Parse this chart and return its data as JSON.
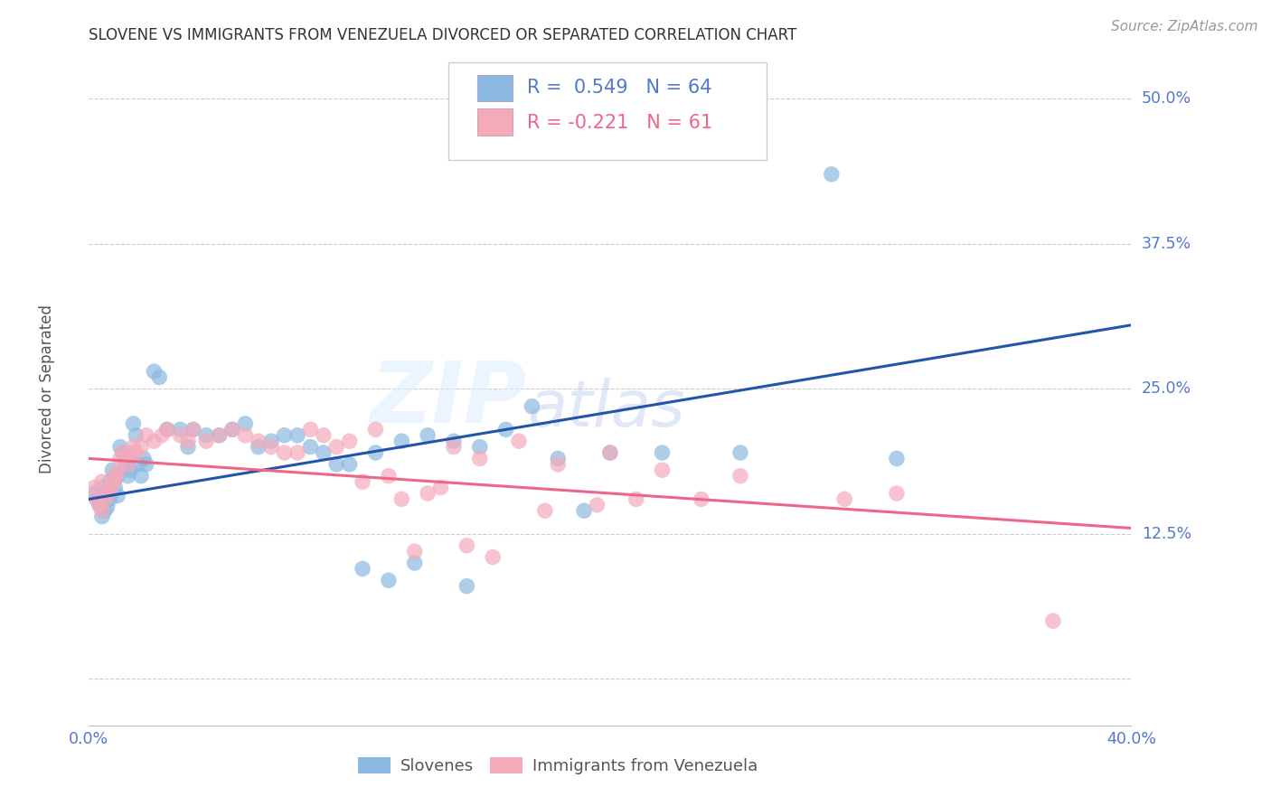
{
  "title": "SLOVENE VS IMMIGRANTS FROM VENEZUELA DIVORCED OR SEPARATED CORRELATION CHART",
  "source": "Source: ZipAtlas.com",
  "ylabel": "Divorced or Separated",
  "xlim": [
    0.0,
    0.4
  ],
  "ylim": [
    -0.04,
    0.54
  ],
  "yticks": [
    0.0,
    0.125,
    0.25,
    0.375,
    0.5
  ],
  "ytick_labels": [
    "",
    "12.5%",
    "25.0%",
    "37.5%",
    "50.0%"
  ],
  "xticks": [
    0.0,
    0.05,
    0.1,
    0.15,
    0.2,
    0.25,
    0.3,
    0.35,
    0.4
  ],
  "xtick_labels": [
    "0.0%",
    "",
    "",
    "",
    "",
    "",
    "",
    "",
    "40.0%"
  ],
  "legend_blue_label": "R =  0.549   N = 64",
  "legend_pink_label": "R = -0.221   N = 61",
  "blue_color": "#8BB8E0",
  "pink_color": "#F4AABB",
  "line_blue_color": "#2255AA",
  "line_pink_color": "#EE6688",
  "watermark_zip": "ZIP",
  "watermark_atlas": "atlas",
  "blue_scatter_x": [
    0.002,
    0.003,
    0.004,
    0.005,
    0.005,
    0.006,
    0.006,
    0.007,
    0.007,
    0.008,
    0.008,
    0.009,
    0.01,
    0.01,
    0.011,
    0.011,
    0.012,
    0.013,
    0.014,
    0.015,
    0.015,
    0.016,
    0.017,
    0.018,
    0.019,
    0.02,
    0.021,
    0.022,
    0.025,
    0.027,
    0.03,
    0.035,
    0.038,
    0.04,
    0.045,
    0.05,
    0.055,
    0.06,
    0.065,
    0.07,
    0.075,
    0.08,
    0.085,
    0.09,
    0.095,
    0.1,
    0.11,
    0.12,
    0.13,
    0.14,
    0.15,
    0.16,
    0.17,
    0.18,
    0.19,
    0.2,
    0.22,
    0.25,
    0.285,
    0.31,
    0.105,
    0.115,
    0.125,
    0.145
  ],
  "blue_scatter_y": [
    0.16,
    0.155,
    0.15,
    0.165,
    0.14,
    0.145,
    0.158,
    0.148,
    0.162,
    0.155,
    0.17,
    0.18,
    0.172,
    0.165,
    0.175,
    0.158,
    0.2,
    0.195,
    0.185,
    0.19,
    0.175,
    0.18,
    0.22,
    0.21,
    0.185,
    0.175,
    0.19,
    0.185,
    0.265,
    0.26,
    0.215,
    0.215,
    0.2,
    0.215,
    0.21,
    0.21,
    0.215,
    0.22,
    0.2,
    0.205,
    0.21,
    0.21,
    0.2,
    0.195,
    0.185,
    0.185,
    0.195,
    0.205,
    0.21,
    0.205,
    0.2,
    0.215,
    0.235,
    0.19,
    0.145,
    0.195,
    0.195,
    0.195,
    0.435,
    0.19,
    0.095,
    0.085,
    0.1,
    0.08
  ],
  "pink_scatter_x": [
    0.002,
    0.003,
    0.004,
    0.005,
    0.005,
    0.006,
    0.007,
    0.008,
    0.009,
    0.01,
    0.01,
    0.011,
    0.012,
    0.013,
    0.015,
    0.016,
    0.017,
    0.018,
    0.02,
    0.022,
    0.025,
    0.028,
    0.03,
    0.035,
    0.038,
    0.04,
    0.045,
    0.05,
    0.055,
    0.06,
    0.065,
    0.07,
    0.075,
    0.08,
    0.085,
    0.09,
    0.095,
    0.1,
    0.105,
    0.11,
    0.115,
    0.12,
    0.13,
    0.14,
    0.15,
    0.165,
    0.18,
    0.2,
    0.22,
    0.25,
    0.29,
    0.31,
    0.37,
    0.125,
    0.135,
    0.145,
    0.155,
    0.175,
    0.195,
    0.21,
    0.235
  ],
  "pink_scatter_y": [
    0.165,
    0.155,
    0.15,
    0.17,
    0.145,
    0.155,
    0.16,
    0.162,
    0.168,
    0.172,
    0.175,
    0.178,
    0.19,
    0.195,
    0.185,
    0.195,
    0.2,
    0.195,
    0.2,
    0.21,
    0.205,
    0.21,
    0.215,
    0.21,
    0.205,
    0.215,
    0.205,
    0.21,
    0.215,
    0.21,
    0.205,
    0.2,
    0.195,
    0.195,
    0.215,
    0.21,
    0.2,
    0.205,
    0.17,
    0.215,
    0.175,
    0.155,
    0.16,
    0.2,
    0.19,
    0.205,
    0.185,
    0.195,
    0.18,
    0.175,
    0.155,
    0.16,
    0.05,
    0.11,
    0.165,
    0.115,
    0.105,
    0.145,
    0.15,
    0.155,
    0.155
  ],
  "blue_line_x": [
    0.0,
    0.4
  ],
  "blue_line_y": [
    0.155,
    0.305
  ],
  "pink_line_x": [
    0.0,
    0.4
  ],
  "pink_line_y": [
    0.19,
    0.13
  ],
  "bg_color": "#FFFFFF",
  "grid_color": "#CCCCCC",
  "title_color": "#333333",
  "axis_color": "#5577CC",
  "tick_color": "#5577CC"
}
